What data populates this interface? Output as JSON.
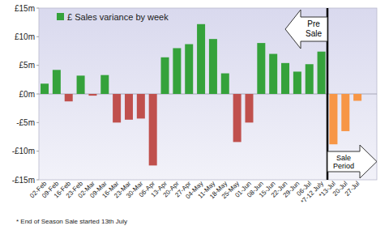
{
  "chart_data": {
    "type": "bar",
    "categories": [
      "02-Feb",
      "09-Feb",
      "16-Feb",
      "23-Feb",
      "02-Mar",
      "09-Mar",
      "16-Mar",
      "23-Mar",
      "30-Mar",
      "06-Apr",
      "13-Apr",
      "20-Apr",
      "27-Apr",
      "04-May",
      "11-May",
      "18-May",
      "25-May",
      "01-Jun",
      "08-Jun",
      "15-Jun",
      "22-Jun",
      "29-Jun",
      "06-Jul",
      "*7-12 July",
      "*13-Jul",
      "20-Jul",
      "27-Jul"
    ],
    "series": [
      {
        "name": "£ Sales variance by week",
        "color": "#35a23b",
        "values": [
          1.8,
          4.2,
          -1.3,
          3.2,
          -0.3,
          3.3,
          -5.0,
          -4.5,
          -4.3,
          -12.5,
          6.4,
          8.0,
          8.7,
          12.2,
          9.6,
          3.6,
          -8.4,
          -5.0,
          8.9,
          7.0,
          5.4,
          3.9,
          5.2,
          7.4,
          -8.8,
          -6.5,
          -1.2
        ],
        "colors": [
          "#35a23b",
          "#35a23b",
          "#c0504d",
          "#35a23b",
          "#c0504d",
          "#35a23b",
          "#c0504d",
          "#c0504d",
          "#c0504d",
          "#c0504d",
          "#35a23b",
          "#35a23b",
          "#35a23b",
          "#35a23b",
          "#35a23b",
          "#35a23b",
          "#c0504d",
          "#c0504d",
          "#35a23b",
          "#35a23b",
          "#35a23b",
          "#35a23b",
          "#35a23b",
          "#35a23b",
          "#f79646",
          "#f79646",
          "#f79646"
        ]
      }
    ],
    "ylim": [
      -15,
      15
    ],
    "yticks": [
      {
        "value": 15,
        "label": "£15m"
      },
      {
        "value": 10,
        "label": "£10m"
      },
      {
        "value": 5,
        "label": "£5m"
      },
      {
        "value": 0,
        "label": "£0m"
      },
      {
        "value": -5,
        "label": "-£5m"
      },
      {
        "value": -10,
        "label": "-£10m"
      },
      {
        "value": -15,
        "label": "-£15m"
      }
    ],
    "grid": false,
    "legend": "top-left",
    "annotations": [
      {
        "text": "Pre Sale",
        "at": "*13-Jul"
      },
      {
        "text": "Sale Period",
        "at": "*13-Jul"
      }
    ],
    "footnote": "* End of Season Sale started 13th July"
  }
}
